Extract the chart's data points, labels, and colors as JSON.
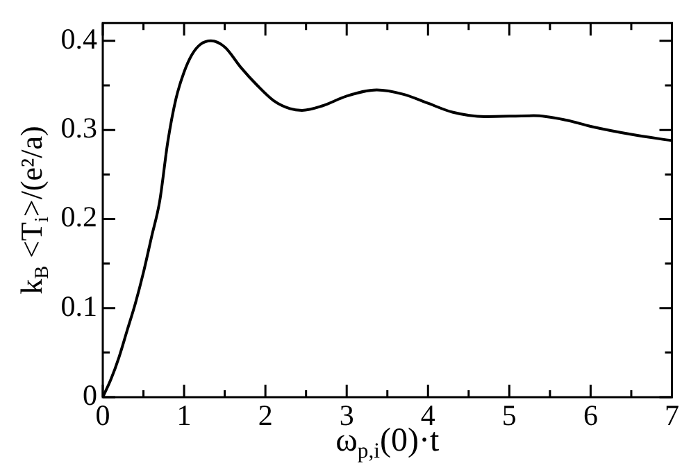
{
  "chart_data": {
    "type": "line",
    "xlabel": "ω$_{p,i}$(0)·t",
    "ylabel": "k$_{B}$ <T$_{i}$>/(e²/a)",
    "xlim": [
      0,
      7
    ],
    "ylim": [
      0,
      0.42
    ],
    "xticks": [
      0,
      {
        "value": 0.5,
        "label": null
      },
      1,
      {
        "value": 1.5,
        "label": null
      },
      2,
      {
        "value": 2.5,
        "label": null
      },
      3,
      {
        "value": 3.5,
        "label": null
      },
      4,
      {
        "value": 4.5,
        "label": null
      },
      5,
      {
        "value": 5.5,
        "label": null
      },
      6,
      {
        "value": 6.5,
        "label": null
      },
      7
    ],
    "yticks": [
      0,
      {
        "value": 0.05,
        "label": null
      },
      0.1,
      {
        "value": 0.15,
        "label": null
      },
      0.2,
      {
        "value": 0.25,
        "label": null
      },
      0.3,
      {
        "value": 0.35,
        "label": null
      },
      0.4
    ],
    "grid": false,
    "legend": false,
    "marker": "none",
    "line_style": "solid",
    "series": [
      {
        "color": "#000000",
        "x": [
          0,
          0.1,
          0.2,
          0.3,
          0.4,
          0.5,
          0.6,
          0.7,
          0.8,
          0.9,
          1.0,
          1.1,
          1.2,
          1.33,
          1.5,
          1.7,
          1.9,
          2.1,
          2.3,
          2.45,
          2.7,
          3.0,
          3.37,
          3.7,
          4.0,
          4.3,
          4.7,
          5.3,
          5.7,
          6.0,
          6.5,
          7.0
        ],
        "values": [
          0,
          0.02,
          0.045,
          0.075,
          0.105,
          0.14,
          0.18,
          0.22,
          0.287,
          0.335,
          0.365,
          0.385,
          0.396,
          0.4,
          0.393,
          0.37,
          0.35,
          0.333,
          0.324,
          0.322,
          0.327,
          0.338,
          0.345,
          0.34,
          0.33,
          0.32,
          0.315,
          0.316,
          0.311,
          0.304,
          0.295,
          0.288
        ]
      }
    ]
  }
}
